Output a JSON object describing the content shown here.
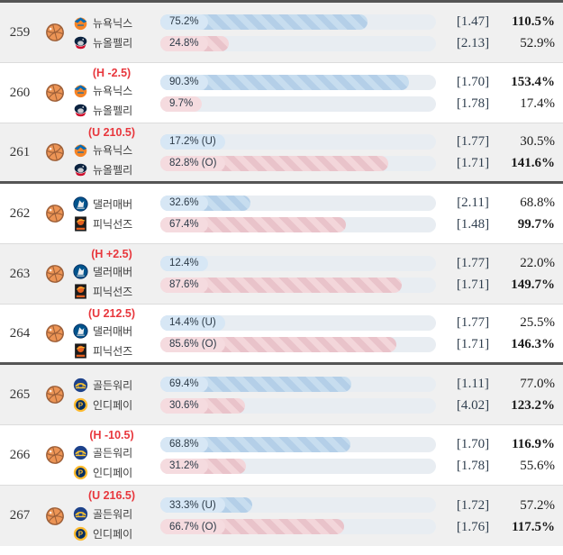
{
  "colors": {
    "accent_red": "#e8373d",
    "bar_blue_fill": "#b4cfe8",
    "bar_blue_label": "#d7e7f5",
    "bar_pink_fill": "#e9c3ca",
    "bar_pink_label": "#f5dbdf",
    "bar_track": "#e8edf2",
    "group_divider": "#555555",
    "row_gray": "#f0f0f0"
  },
  "rows": [
    {
      "number": "259",
      "header": "",
      "shade": "gray",
      "group_end": false,
      "teams": [
        {
          "name": "뉴욕닉스",
          "icon": "knicks-logo"
        },
        {
          "name": "뉴올펠리",
          "icon": "pelicans-logo"
        }
      ],
      "bars": [
        {
          "label": "75.2%",
          "pct": 75.2,
          "color": "blue"
        },
        {
          "label": "24.8%",
          "pct": 24.8,
          "color": "pink"
        }
      ],
      "odds": [
        "[1.47]",
        "[2.13]"
      ],
      "returns": [
        {
          "value": "110.5%",
          "bold": true
        },
        {
          "value": "52.9%",
          "bold": false
        }
      ]
    },
    {
      "number": "260",
      "header": "(H -2.5)",
      "shade": "white",
      "group_end": false,
      "teams": [
        {
          "name": "뉴욕닉스",
          "icon": "knicks-logo"
        },
        {
          "name": "뉴올펠리",
          "icon": "pelicans-logo"
        }
      ],
      "bars": [
        {
          "label": "90.3%",
          "pct": 90.3,
          "color": "blue"
        },
        {
          "label": "9.7%",
          "pct": 9.7,
          "color": "pink"
        }
      ],
      "odds": [
        "[1.70]",
        "[1.78]"
      ],
      "returns": [
        {
          "value": "153.4%",
          "bold": true
        },
        {
          "value": "17.4%",
          "bold": false
        }
      ]
    },
    {
      "number": "261",
      "header": "(U 210.5)",
      "shade": "gray",
      "group_end": true,
      "teams": [
        {
          "name": "뉴욕닉스",
          "icon": "knicks-logo"
        },
        {
          "name": "뉴올펠리",
          "icon": "pelicans-logo"
        }
      ],
      "bars": [
        {
          "label": "17.2% (U)",
          "pct": 17.2,
          "color": "blue"
        },
        {
          "label": "82.8% (O)",
          "pct": 82.8,
          "color": "pink"
        }
      ],
      "odds": [
        "[1.77]",
        "[1.71]"
      ],
      "returns": [
        {
          "value": "30.5%",
          "bold": false
        },
        {
          "value": "141.6%",
          "bold": true
        }
      ]
    },
    {
      "number": "262",
      "header": "",
      "shade": "white",
      "group_end": false,
      "teams": [
        {
          "name": "댈러매버",
          "icon": "mavericks-logo"
        },
        {
          "name": "피닉선즈",
          "icon": "suns-logo"
        }
      ],
      "bars": [
        {
          "label": "32.6%",
          "pct": 32.6,
          "color": "blue"
        },
        {
          "label": "67.4%",
          "pct": 67.4,
          "color": "pink"
        }
      ],
      "odds": [
        "[2.11]",
        "[1.48]"
      ],
      "returns": [
        {
          "value": "68.8%",
          "bold": false
        },
        {
          "value": "99.7%",
          "bold": true
        }
      ]
    },
    {
      "number": "263",
      "header": "(H +2.5)",
      "shade": "gray",
      "group_end": false,
      "teams": [
        {
          "name": "댈러매버",
          "icon": "mavericks-logo"
        },
        {
          "name": "피닉선즈",
          "icon": "suns-logo"
        }
      ],
      "bars": [
        {
          "label": "12.4%",
          "pct": 12.4,
          "color": "blue"
        },
        {
          "label": "87.6%",
          "pct": 87.6,
          "color": "pink"
        }
      ],
      "odds": [
        "[1.77]",
        "[1.71]"
      ],
      "returns": [
        {
          "value": "22.0%",
          "bold": false
        },
        {
          "value": "149.7%",
          "bold": true
        }
      ]
    },
    {
      "number": "264",
      "header": "(U 212.5)",
      "shade": "white",
      "group_end": true,
      "teams": [
        {
          "name": "댈러매버",
          "icon": "mavericks-logo"
        },
        {
          "name": "피닉선즈",
          "icon": "suns-logo"
        }
      ],
      "bars": [
        {
          "label": "14.4% (U)",
          "pct": 14.4,
          "color": "blue"
        },
        {
          "label": "85.6% (O)",
          "pct": 85.6,
          "color": "pink"
        }
      ],
      "odds": [
        "[1.77]",
        "[1.71]"
      ],
      "returns": [
        {
          "value": "25.5%",
          "bold": false
        },
        {
          "value": "146.3%",
          "bold": true
        }
      ]
    },
    {
      "number": "265",
      "header": "",
      "shade": "gray",
      "group_end": false,
      "teams": [
        {
          "name": "골든워리",
          "icon": "warriors-logo"
        },
        {
          "name": "인디페이",
          "icon": "pacers-logo"
        }
      ],
      "bars": [
        {
          "label": "69.4%",
          "pct": 69.4,
          "color": "blue"
        },
        {
          "label": "30.6%",
          "pct": 30.6,
          "color": "pink"
        }
      ],
      "odds": [
        "[1.11]",
        "[4.02]"
      ],
      "returns": [
        {
          "value": "77.0%",
          "bold": false
        },
        {
          "value": "123.2%",
          "bold": true
        }
      ]
    },
    {
      "number": "266",
      "header": "(H -10.5)",
      "shade": "white",
      "group_end": false,
      "teams": [
        {
          "name": "골든워리",
          "icon": "warriors-logo"
        },
        {
          "name": "인디페이",
          "icon": "pacers-logo"
        }
      ],
      "bars": [
        {
          "label": "68.8%",
          "pct": 68.8,
          "color": "blue"
        },
        {
          "label": "31.2%",
          "pct": 31.2,
          "color": "pink"
        }
      ],
      "odds": [
        "[1.70]",
        "[1.78]"
      ],
      "returns": [
        {
          "value": "116.9%",
          "bold": true
        },
        {
          "value": "55.6%",
          "bold": false
        }
      ]
    },
    {
      "number": "267",
      "header": "(U 216.5)",
      "shade": "gray",
      "group_end": true,
      "teams": [
        {
          "name": "골든워리",
          "icon": "warriors-logo"
        },
        {
          "name": "인디페이",
          "icon": "pacers-logo"
        }
      ],
      "bars": [
        {
          "label": "33.3% (U)",
          "pct": 33.3,
          "color": "blue"
        },
        {
          "label": "66.7% (O)",
          "pct": 66.7,
          "color": "pink"
        }
      ],
      "odds": [
        "[1.72]",
        "[1.76]"
      ],
      "returns": [
        {
          "value": "57.2%",
          "bold": false
        },
        {
          "value": "117.5%",
          "bold": true
        }
      ]
    }
  ]
}
